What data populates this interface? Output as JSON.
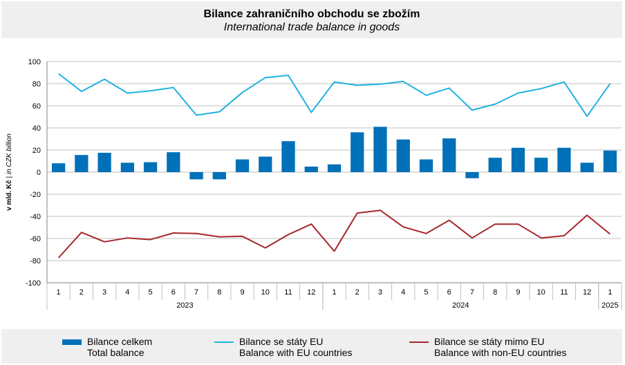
{
  "title": {
    "cs": "Bilance zahraničního obchodu se zbožím",
    "en": "International trade balance in goods"
  },
  "colors": {
    "bar": "#0070b8",
    "eu_line": "#1fb2e2",
    "non_eu_line": "#a5262b",
    "grid": "#bfbfbf",
    "axis": "#808080"
  },
  "chart_data": {
    "type": "bar",
    "ylabel_cs": "v mld. Kč",
    "ylabel_sep": "|",
    "ylabel_en": "in CZK billion",
    "ylim": [
      -100,
      100
    ],
    "yticks": [
      100,
      80,
      60,
      40,
      20,
      0,
      -20,
      -40,
      -60,
      -80,
      -100
    ],
    "grid": true,
    "legend_position": "bottom",
    "categories": [
      "1",
      "2",
      "3",
      "4",
      "5",
      "6",
      "7",
      "8",
      "9",
      "10",
      "11",
      "12",
      "1",
      "2",
      "3",
      "4",
      "5",
      "6",
      "7",
      "8",
      "9",
      "10",
      "11",
      "12",
      "1"
    ],
    "years": [
      {
        "label": "2023",
        "start": 0,
        "count": 12
      },
      {
        "label": "2024",
        "start": 12,
        "count": 12
      },
      {
        "label": "2025",
        "start": 24,
        "count": 1
      }
    ],
    "series": [
      {
        "name_cs": "Bilance celkem",
        "name_en": "Total balance",
        "type": "bar",
        "values": [
          8,
          15.5,
          17.5,
          8.5,
          9,
          18,
          -6.5,
          -6.5,
          11.5,
          14,
          28,
          5,
          7,
          36,
          41,
          29.5,
          11.5,
          30.5,
          -5.5,
          13,
          22,
          13,
          22,
          8.5,
          19.5
        ]
      },
      {
        "name_cs": "Bilance se státy EU",
        "name_en": "Balance with EU countries",
        "type": "line",
        "values": [
          89,
          73,
          84,
          71.5,
          73.5,
          76.5,
          51.5,
          54.5,
          72,
          85.5,
          87.5,
          54,
          81.5,
          78.5,
          79.5,
          82,
          69.5,
          76,
          56,
          61.5,
          71.5,
          75.5,
          81.5,
          50.5,
          80
        ]
      },
      {
        "name_cs": "Bilance se státy mimo EU",
        "name_en": "Balance with non-EU countries",
        "type": "line",
        "values": [
          -77.5,
          -54.5,
          -63,
          -59.5,
          -61,
          -55,
          -55.5,
          -58.5,
          -58,
          -68.5,
          -56.5,
          -47,
          -71.5,
          -37,
          -34.5,
          -49.5,
          -55.5,
          -43.5,
          -59.5,
          -47,
          -47,
          -59.5,
          -57.5,
          -39,
          -56
        ]
      }
    ]
  }
}
